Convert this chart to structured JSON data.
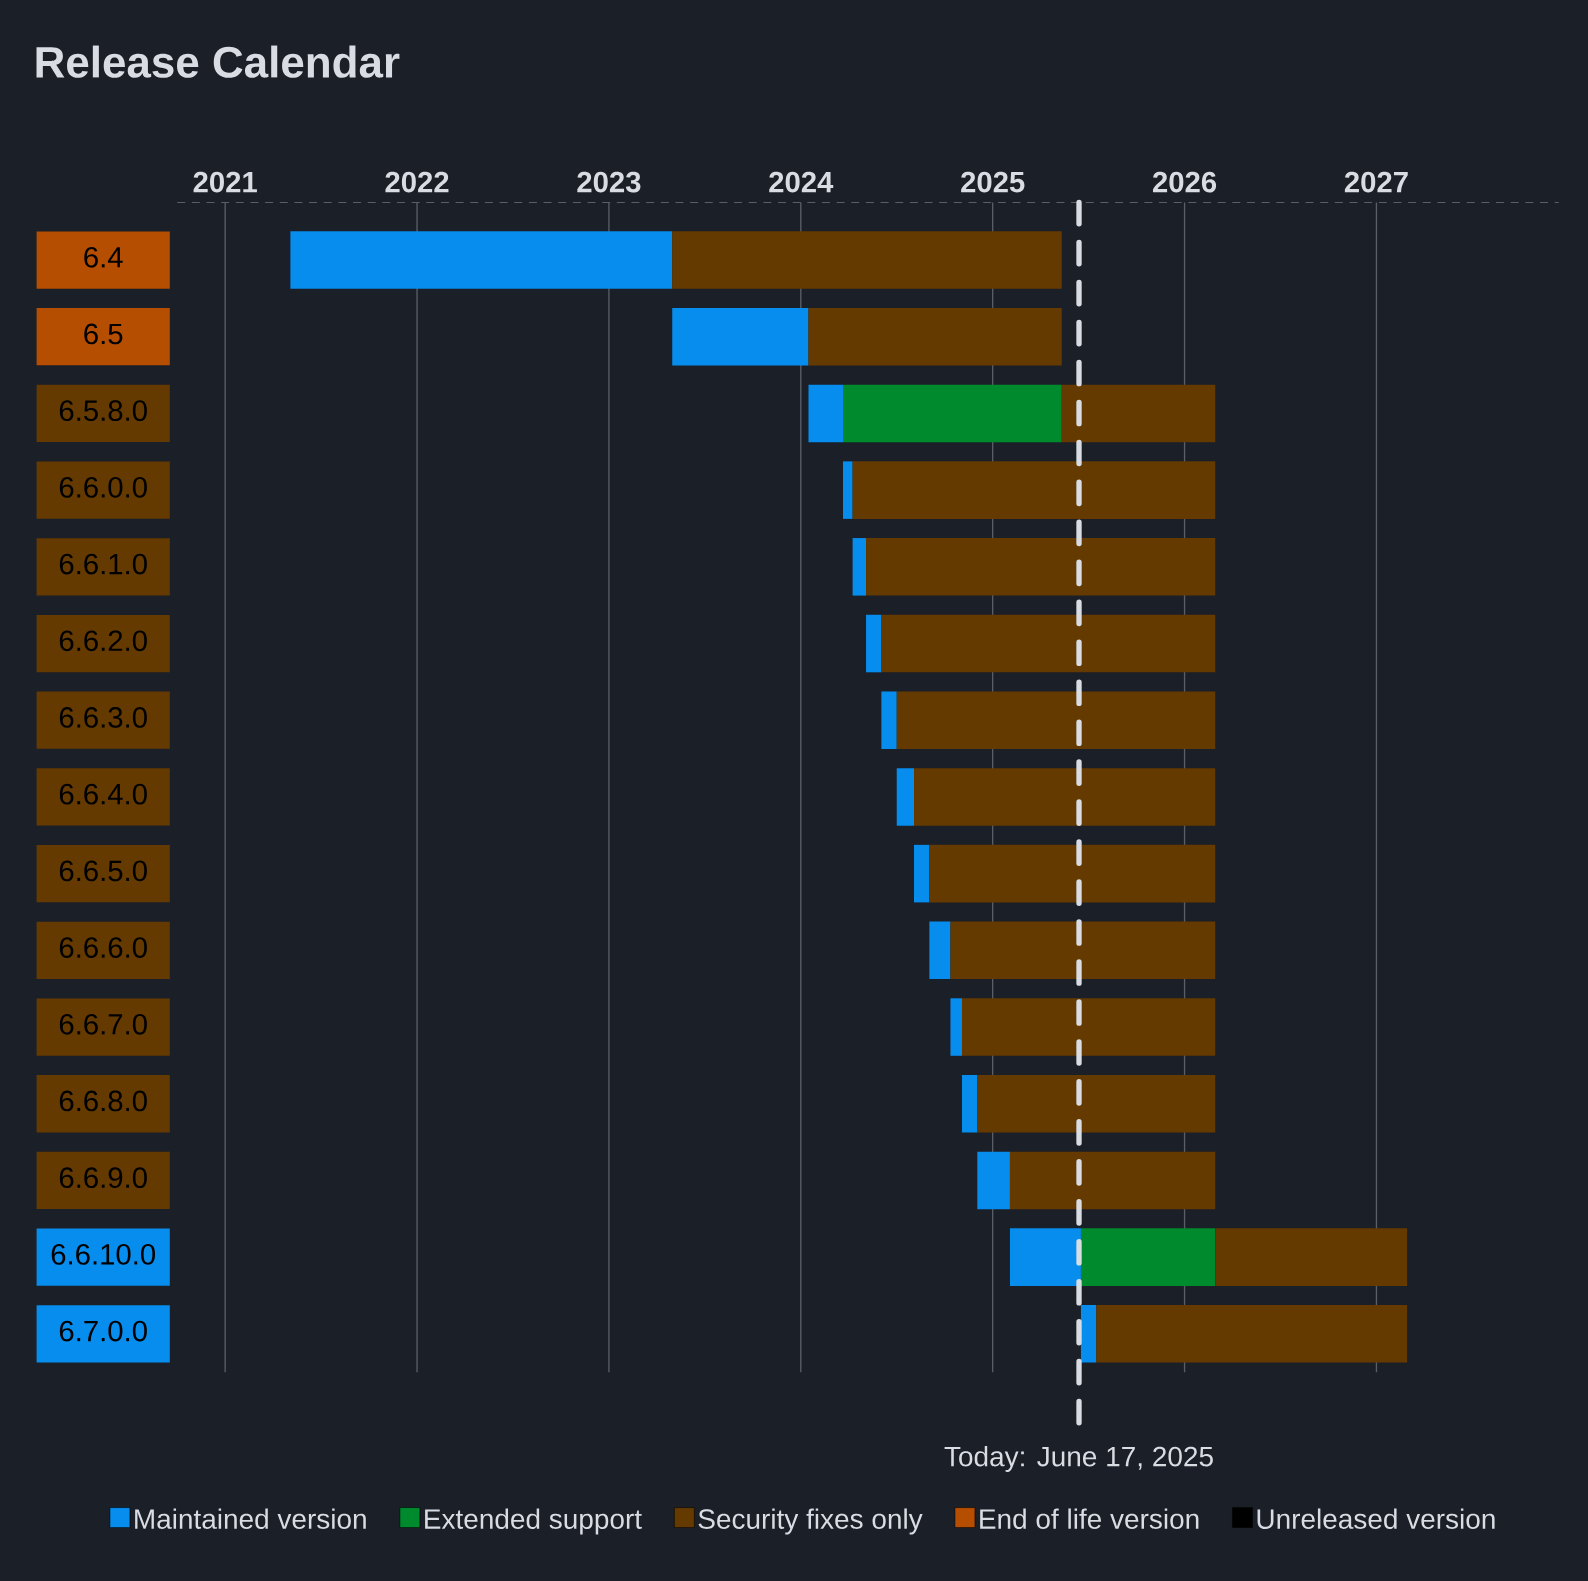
{
  "chart_data": {
    "type": "bar",
    "orientation": "horizontal",
    "title": "Release Calendar",
    "categories": [
      "6.4",
      "6.5",
      "6.5.8.0",
      "6.6.0.0",
      "6.6.1.0",
      "6.6.2.0",
      "6.6.3.0",
      "6.6.4.0",
      "6.6.5.0",
      "6.6.6.0",
      "6.6.7.0",
      "6.6.8.0",
      "6.6.9.0",
      "6.6.10.0",
      "6.7.0.0"
    ],
    "series": [
      {
        "name": "Maintained version",
        "color": "#078ded",
        "base": [
          2021.34,
          2023.33,
          2024.04,
          2024.22,
          2024.27,
          2024.34,
          2024.42,
          2024.5,
          2024.59,
          2024.67,
          2024.78,
          2024.84,
          2024.92,
          2025.09,
          2025.46
        ],
        "values": [
          1.99,
          0.71,
          0.18,
          0.05,
          0.07,
          0.08,
          0.08,
          0.09,
          0.08,
          0.11,
          0.06,
          0.08,
          0.17,
          0.37,
          0.08
        ]
      },
      {
        "name": "Extended support",
        "color": "#008a2e",
        "base": [
          null,
          null,
          2024.22,
          null,
          null,
          null,
          null,
          null,
          null,
          null,
          null,
          null,
          null,
          2025.46,
          null
        ],
        "values": [
          null,
          null,
          1.14,
          null,
          null,
          null,
          null,
          null,
          null,
          null,
          null,
          null,
          null,
          0.7,
          null
        ]
      },
      {
        "name": "Security fixes only",
        "color": "#643a00",
        "base": [
          2023.33,
          2024.04,
          2025.36,
          2024.27,
          2024.34,
          2024.42,
          2024.5,
          2024.59,
          2024.67,
          2024.78,
          2024.84,
          2024.92,
          2025.09,
          2026.16,
          2025.54
        ],
        "values": [
          2.03,
          1.32,
          0.8,
          1.89,
          1.82,
          1.74,
          1.66,
          1.57,
          1.49,
          1.38,
          1.32,
          1.24,
          1.07,
          1.0,
          1.62
        ]
      },
      {
        "name": "End of life version",
        "color": "#b54e00",
        "values": [
          null,
          null,
          null,
          null,
          null,
          null,
          null,
          null,
          null,
          null,
          null,
          null,
          null,
          null,
          null
        ]
      },
      {
        "name": "Unreleased version",
        "color": "#000000",
        "values": [
          null,
          null,
          null,
          null,
          null,
          null,
          null,
          null,
          null,
          null,
          null,
          null,
          null,
          null,
          null
        ]
      }
    ],
    "xlim": [
      2020.75,
      2027.95
    ],
    "xticks": [
      2021,
      2022,
      2023,
      2024,
      2025,
      2026,
      2027
    ],
    "grid": "x",
    "legend": "bottom",
    "ref_lines": [
      {
        "axis": "x",
        "value": 2025.45,
        "label": "Today: June 17, 2025",
        "color": "#d9dde3",
        "line_style": "dashed"
      }
    ]
  }
}
